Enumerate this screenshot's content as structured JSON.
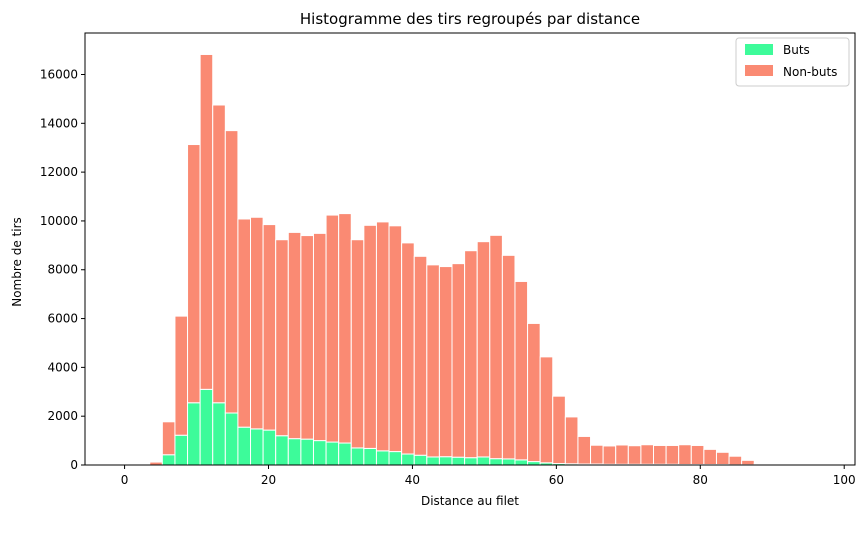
{
  "chart_data": {
    "type": "bar",
    "title": "Histogramme des tirs regroupés par distance",
    "xlabel": "Distance au filet",
    "ylabel": "Nombre de tirs",
    "xlim": [
      -5.5,
      101.5
    ],
    "ylim": [
      0,
      17700
    ],
    "xticks": [
      0,
      20,
      40,
      60,
      80,
      100
    ],
    "yticks": [
      0,
      2000,
      4000,
      6000,
      8000,
      10000,
      12000,
      14000,
      16000
    ],
    "bin_width": 1.75,
    "bin_start": 0,
    "stacked": true,
    "grid": false,
    "legend_position": "top-right",
    "colors": {
      "goals": "#3dfb9a",
      "non_goals": "#fa8a73",
      "edge": "#ffffff"
    },
    "series": [
      {
        "name": "Buts",
        "color": "#3dfb9a",
        "values": [
          0,
          0,
          0,
          420,
          1220,
          2550,
          3100,
          2550,
          2130,
          1550,
          1480,
          1430,
          1200,
          1080,
          1060,
          1000,
          940,
          900,
          700,
          680,
          580,
          550,
          450,
          400,
          330,
          340,
          320,
          300,
          330,
          260,
          250,
          210,
          140,
          90,
          60,
          50,
          40,
          40,
          30,
          30,
          30,
          30,
          30,
          30,
          20,
          20,
          20,
          20,
          10,
          10,
          10,
          10,
          0,
          0,
          0,
          0,
          0,
          0
        ]
      },
      {
        "name": "Non-buts",
        "color": "#fa8a73",
        "values": [
          0,
          0,
          120,
          1350,
          4880,
          10580,
          13720,
          12200,
          11570,
          8530,
          8670,
          8420,
          8030,
          8450,
          8340,
          8490,
          9300,
          9400,
          8530,
          9140,
          9380,
          9250,
          8650,
          8150,
          7870,
          7790,
          7930,
          8480,
          8820,
          9150,
          8340,
          7310,
          5660,
          4340,
          2760,
          1920,
          1130,
          770,
          750,
          790,
          760,
          800,
          770,
          770,
          810,
          780,
          620,
          500,
          350,
          180,
          40,
          20,
          0,
          0,
          0,
          0,
          0,
          0
        ]
      }
    ]
  }
}
